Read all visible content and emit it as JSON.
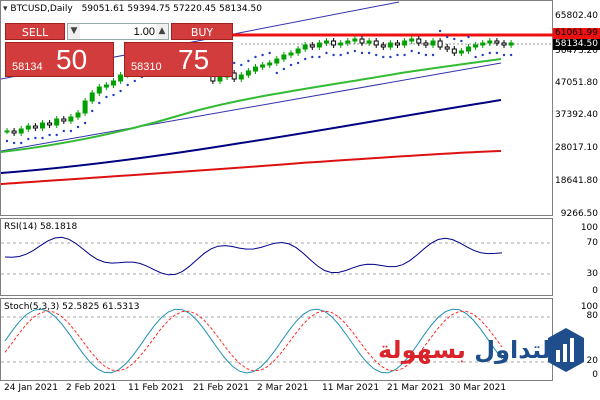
{
  "header": {
    "symbol": "BTCUSD,Daily",
    "ohlc": "59051.61 59394.75 57220.45 58134.50",
    "menu_icon": "triangle-down-icon"
  },
  "trade_panel": {
    "sell_label": "SELL",
    "buy_label": "BUY",
    "volume": "1.00",
    "sell_price_small": "58134",
    "sell_price_big": "50",
    "buy_price_small": "58310",
    "buy_price_big": "75",
    "color": "#d33c3c"
  },
  "main_chart": {
    "y_ticks": [
      "65802.40",
      "61061.99",
      "58134.50",
      "56473.20",
      "47051.80",
      "37392.40",
      "28017.10",
      "18641.80",
      "9266.50"
    ],
    "resistance_label": "61061.99",
    "current_price_label": "58134.50"
  },
  "rsi": {
    "label": "RSI(14) 58.1818",
    "ticks": [
      "100",
      "70",
      "30",
      "0"
    ]
  },
  "stoch": {
    "label": "Stoch(5,3,3) 52.5825 61.5313",
    "ticks": [
      "100",
      "80",
      "20",
      "0"
    ]
  },
  "x_axis": {
    "labels": [
      "24 Jan 2021",
      "2 Feb 2021",
      "11 Feb 2021",
      "21 Feb 2021",
      "2 Mar 2021",
      "11 Mar 2021",
      "21 Mar 2021",
      "30 Mar 2021"
    ]
  },
  "logo": {
    "text": "التداول بسهولة",
    "icon": "bar-chart-logo-icon"
  },
  "colors": {
    "sma_green": "#33bb33",
    "sma_navy": "#000080",
    "sma_red": "#dd1111",
    "channel": "#3333aa",
    "resistance": "#ee1111",
    "rsi_line": "#00008b",
    "stoch_main": "#1e90b4",
    "stoch_signal": "#ff2a2a"
  }
}
